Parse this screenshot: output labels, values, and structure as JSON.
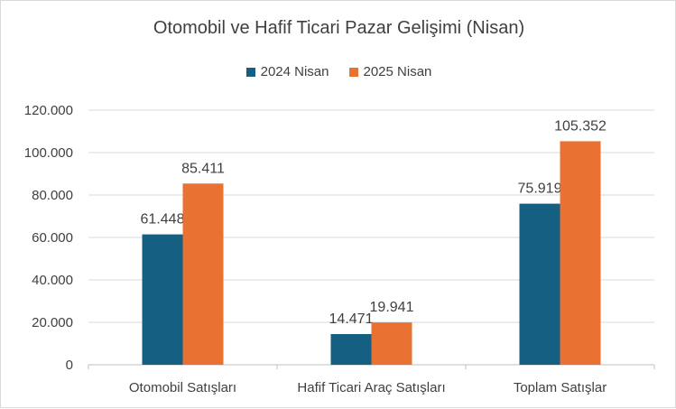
{
  "chart_data": {
    "type": "bar",
    "title": "Otomobil ve Hafif Ticari Pazar Gelişimi (Nisan)",
    "categories": [
      "Otomobil Satışları",
      "Hafif Ticari Araç Satışları",
      "Toplam Satışlar"
    ],
    "series": [
      {
        "name": "2024 Nisan",
        "color": "#156082",
        "values": [
          61448,
          14471,
          75919
        ],
        "labels": [
          "61.448",
          "14.471",
          "75.919"
        ]
      },
      {
        "name": "2025 Nisan",
        "color": "#E97132",
        "values": [
          85411,
          19941,
          105352
        ],
        "labels": [
          "85.411",
          "19.941",
          "105.352"
        ]
      }
    ],
    "ylim": [
      0,
      120000
    ],
    "yticks": [
      0,
      20000,
      40000,
      60000,
      80000,
      100000,
      120000
    ],
    "ytick_labels": [
      "0",
      "20.000",
      "40.000",
      "60.000",
      "80.000",
      "100.000",
      "120.000"
    ],
    "grid": true,
    "legend_position": "top"
  }
}
